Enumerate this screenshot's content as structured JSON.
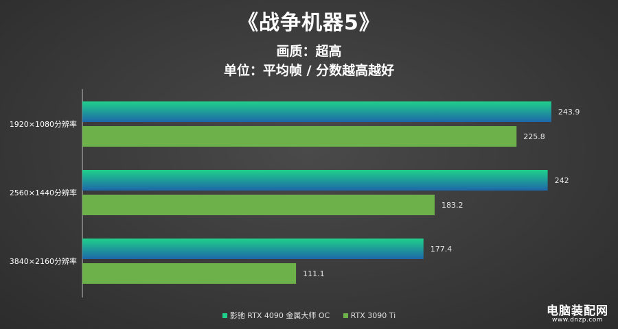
{
  "chart_data": {
    "type": "bar",
    "orientation": "horizontal",
    "title": "《战争机器5》",
    "subtitle_lines": [
      "画质：超高",
      "单位：平均帧 / 分数越高越好"
    ],
    "categories": [
      "1920×1080分辨率",
      "2560×1440分辨率",
      "3840×2160分辨率"
    ],
    "series": [
      {
        "name": "影驰 RTX 4090 金属大师 OC",
        "values": [
          243.9,
          242,
          177.4
        ]
      },
      {
        "name": "RTX 3090 Ti",
        "values": [
          225.8,
          183.2,
          111.1
        ]
      }
    ],
    "xlim": [
      0,
      250
    ],
    "grid": false,
    "legend": "bottom-center",
    "data_labels": [
      "243.9",
      "225.8",
      "242",
      "183.2",
      "177.4",
      "111.1"
    ],
    "colors": {
      "series1_top": "#1fd08a",
      "series1_bottom": "#1e66a8",
      "series2": "#6cb14a"
    }
  },
  "watermark": {
    "main": "电脑装配网",
    "sub": "www.dnzp.com"
  }
}
